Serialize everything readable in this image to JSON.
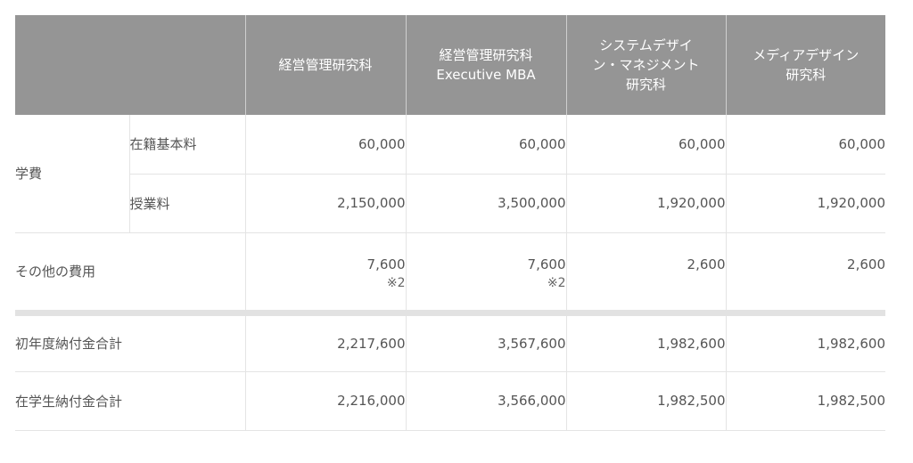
{
  "table": {
    "headers": [
      "",
      "経営管理研究科",
      "経営管理研究科\nExecutive MBA",
      "システムデザイ\nン・マネジメント\n研究科",
      "メディアデザイン\n研究科"
    ],
    "tuition": {
      "label": "学費",
      "rows": [
        {
          "label": "在籍基本料",
          "values": [
            "60,000",
            "60,000",
            "60,000",
            "60,000"
          ]
        },
        {
          "label": "授業料",
          "values": [
            "2,150,000",
            "3,500,000",
            "1,920,000",
            "1,920,000"
          ]
        }
      ]
    },
    "other": {
      "label": "その他の費用",
      "values": [
        "7,600",
        "7,600",
        "2,600",
        "2,600"
      ],
      "notes": [
        "※2",
        "※2",
        "",
        ""
      ]
    },
    "totals": [
      {
        "label": "初年度納付金合計",
        "values": [
          "2,217,600",
          "3,567,600",
          "1,982,600",
          "1,982,600"
        ]
      },
      {
        "label": "在学生納付金合計",
        "values": [
          "2,216,000",
          "3,566,000",
          "1,982,500",
          "1,982,500"
        ]
      }
    ]
  }
}
